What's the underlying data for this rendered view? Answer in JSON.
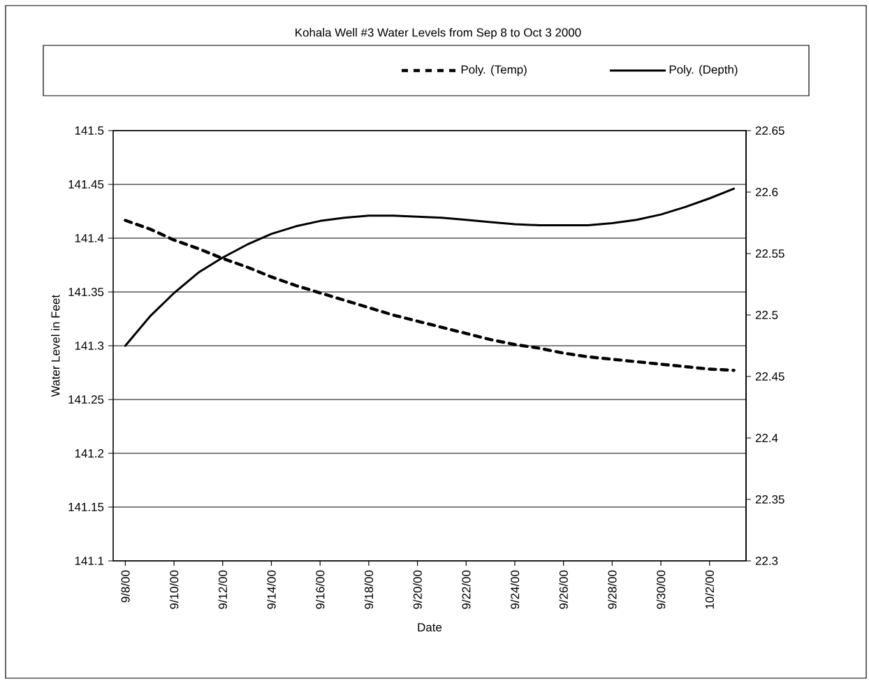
{
  "chart_data": {
    "type": "line",
    "title": "Kohala Well #3 Water Levels from Sep 8 to Oct 3 2000",
    "xlabel": "Date",
    "ylabel": "Water Level in Feet",
    "x": [
      "2000-09-08",
      "2000-09-09",
      "2000-09-10",
      "2000-09-11",
      "2000-09-12",
      "2000-09-13",
      "2000-09-14",
      "2000-09-15",
      "2000-09-16",
      "2000-09-17",
      "2000-09-18",
      "2000-09-19",
      "2000-09-20",
      "2000-09-21",
      "2000-09-22",
      "2000-09-23",
      "2000-09-24",
      "2000-09-25",
      "2000-09-26",
      "2000-09-27",
      "2000-09-28",
      "2000-09-29",
      "2000-09-30",
      "2000-10-01",
      "2000-10-02",
      "2000-10-03"
    ],
    "series": [
      {
        "name": "Poly. (Temp)",
        "color": "#000000",
        "line_style": "dashed",
        "axis": "y2",
        "values": [
          22.577,
          22.57,
          22.561,
          22.554,
          22.546,
          22.539,
          22.531,
          22.524,
          22.518,
          22.512,
          22.506,
          22.5,
          22.495,
          22.49,
          22.485,
          22.48,
          22.476,
          22.473,
          22.469,
          22.466,
          22.464,
          22.462,
          22.46,
          22.458,
          22.456,
          22.455
        ]
      },
      {
        "name": "Poly. (Depth)",
        "color": "#000000",
        "line_style": "solid",
        "values": [
          141.3,
          141.327,
          141.349,
          141.368,
          141.382,
          141.394,
          141.404,
          141.411,
          141.416,
          141.419,
          141.421,
          141.421,
          141.42,
          141.419,
          141.417,
          141.415,
          141.413,
          141.412,
          141.412,
          141.412,
          141.414,
          141.417,
          141.422,
          141.429,
          141.437,
          141.446
        ]
      }
    ],
    "xlim": [
      "2000-09-07T12:00",
      "2000-10-03T12:00"
    ],
    "xticks": [
      {
        "value": "2000-09-08",
        "label": "9/8/00"
      },
      {
        "value": "2000-09-10",
        "label": "9/10/00"
      },
      {
        "value": "2000-09-12",
        "label": "9/12/00"
      },
      {
        "value": "2000-09-14",
        "label": "9/14/00"
      },
      {
        "value": "2000-09-16",
        "label": "9/16/00"
      },
      {
        "value": "2000-09-18",
        "label": "9/18/00"
      },
      {
        "value": "2000-09-20",
        "label": "9/20/00"
      },
      {
        "value": "2000-09-22",
        "label": "9/22/00"
      },
      {
        "value": "2000-09-24",
        "label": "9/24/00"
      },
      {
        "value": "2000-09-26",
        "label": "9/26/00"
      },
      {
        "value": "2000-09-28",
        "label": "9/28/00"
      },
      {
        "value": "2000-09-30",
        "label": "9/30/00"
      },
      {
        "value": "2000-10-02",
        "label": "10/2/00"
      }
    ],
    "ylim": [
      141.1,
      141.5
    ],
    "yticks": [
      141.1,
      141.15,
      141.2,
      141.25,
      141.3,
      141.35,
      141.4,
      141.45,
      141.5
    ],
    "y2lim": [
      22.3,
      22.65
    ],
    "y2ticks": [
      22.3,
      22.35,
      22.4,
      22.45,
      22.5,
      22.55,
      22.6,
      22.65
    ],
    "grid": "y",
    "legend": "top"
  }
}
